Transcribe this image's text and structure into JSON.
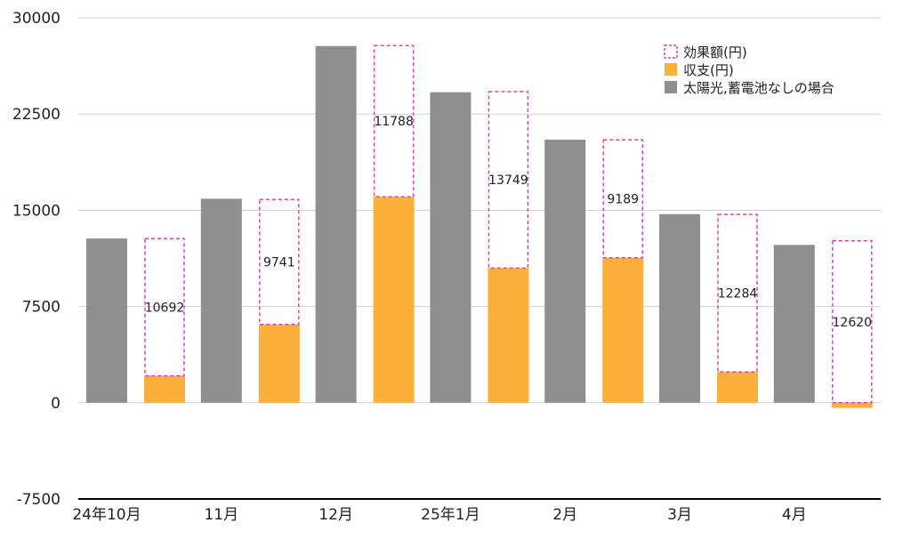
{
  "chart_data": {
    "type": "bar",
    "categories": [
      "24年10月",
      "11月",
      "12月",
      "25年1月",
      "2月",
      "3月",
      "4月"
    ],
    "ylim": [
      -7500,
      30000
    ],
    "yticks": [
      "30000",
      "22500",
      "15000",
      "7500",
      "0",
      "-7500"
    ],
    "yticks_values": [
      30000,
      22500,
      15000,
      7500,
      0,
      -7500
    ],
    "grid": true,
    "legend_position": "top-right",
    "colors": {
      "no_solar": "#8f8f8f",
      "balance": "#fbb03b",
      "effect": "#e040b0",
      "grid": "#d0d0d0",
      "axis": "#000000"
    },
    "series": [
      {
        "name": "太陽光,蓄電池なしの場合",
        "values": [
          12800,
          15900,
          27800,
          24200,
          20500,
          14700,
          12300
        ]
      },
      {
        "name": "収支(円)",
        "values": [
          2100,
          6100,
          16050,
          10500,
          11300,
          2400,
          -400
        ]
      },
      {
        "name": "効果額(円)",
        "values": [
          10692,
          9741,
          11788,
          13749,
          9189,
          12284,
          12620
        ]
      }
    ],
    "data_labels": [
      "10692",
      "9741",
      "11788",
      "13749",
      "9189",
      "12284",
      "12620"
    ]
  }
}
